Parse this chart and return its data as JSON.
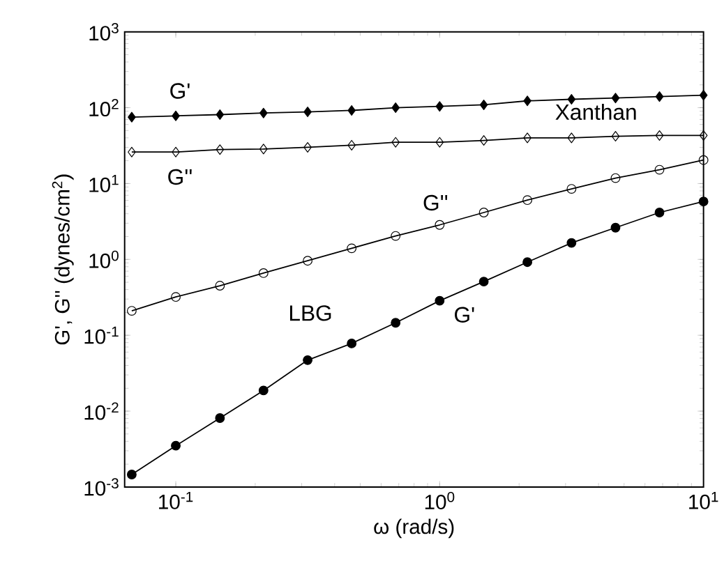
{
  "chart_data": {
    "type": "line",
    "xlabel": "ω (rad/s)",
    "ylabel": "G', G'' (dynes/cm$^{2}$)",
    "log": "xy",
    "grid": false,
    "xlim": [
      0.064,
      10
    ],
    "ylim": [
      0.001,
      1000
    ],
    "xticks": [
      {
        "value": 0.1,
        "label": "10$^{-1}$"
      },
      {
        "value": 1,
        "label": "10$^{0}$"
      },
      {
        "value": 10,
        "label": "10$^{1}$"
      }
    ],
    "yticks": [
      {
        "value": 0.001,
        "label": "10$^{-3}$"
      },
      {
        "value": 0.01,
        "label": "10$^{-2}$"
      },
      {
        "value": 0.1,
        "label": "10$^{-1}$"
      },
      {
        "value": 1,
        "label": "10$^{0}$"
      },
      {
        "value": 10,
        "label": "10$^{1}$"
      },
      {
        "value": 100,
        "label": "10$^{2}$"
      },
      {
        "value": 1000,
        "label": "10$^{3}$"
      }
    ],
    "x": [
      0.0681,
      0.1,
      0.147,
      0.215,
      0.316,
      0.464,
      0.681,
      1,
      1.47,
      2.15,
      3.16,
      4.64,
      6.81,
      10
    ],
    "series": [
      {
        "name": "G'",
        "color": "#000000",
        "marker": "diamond",
        "values": [
          75,
          78,
          81,
          85,
          88,
          92,
          100,
          104,
          109,
          123,
          129,
          134,
          140,
          146
        ]
      },
      {
        "name": "G''",
        "color": "#000000",
        "marker": "diamond",
        "values": [
          26,
          26,
          28,
          28.5,
          30,
          32,
          35,
          35,
          37,
          40,
          40,
          42,
          43,
          43
        ]
      },
      {
        "name": "G''",
        "color": "#000000",
        "marker": "circle",
        "values": [
          0.21,
          0.32,
          0.45,
          0.66,
          0.96,
          1.4,
          2.04,
          2.85,
          4.15,
          6.05,
          8.5,
          11.8,
          15.2,
          20.4
        ]
      },
      {
        "name": "G'",
        "color": "#000000",
        "marker": "circle",
        "values": [
          0.00146,
          0.0035,
          0.0081,
          0.0187,
          0.047,
          0.078,
          0.146,
          0.285,
          0.51,
          0.92,
          1.65,
          2.62,
          4.15,
          5.8
        ]
      }
    ],
    "annotations": [
      "Xanthan",
      "LBG"
    ]
  }
}
